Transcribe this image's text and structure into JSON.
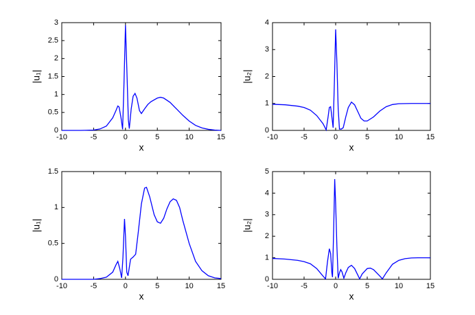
{
  "chart_data": [
    {
      "type": "line",
      "xlabel": "x",
      "ylabel": "|u₁|",
      "xlim": [
        -10,
        15
      ],
      "xticks": [
        -10,
        -5,
        0,
        5,
        10,
        15
      ],
      "ylim": [
        0,
        3
      ],
      "yticks": [
        0,
        0.5,
        1,
        1.5,
        2,
        2.5,
        3
      ],
      "series": [
        {
          "color": "#0000ff",
          "x": [
            -10,
            -7,
            -5,
            -4,
            -3,
            -2,
            -1.5,
            -1.2,
            -1,
            -0.7,
            -0.45,
            -0.25,
            0,
            0.25,
            0.45,
            0.6,
            0.9,
            1.2,
            1.5,
            1.8,
            2.2,
            2.5,
            3,
            3.5,
            4,
            5,
            5.5,
            6,
            7,
            8,
            9,
            10,
            11,
            12,
            13,
            14,
            15
          ],
          "values": [
            0,
            0,
            0.01,
            0.04,
            0.12,
            0.35,
            0.55,
            0.68,
            0.65,
            0.35,
            0.03,
            1.2,
            2.93,
            1.5,
            0.3,
            0.05,
            0.6,
            0.95,
            1.03,
            0.9,
            0.55,
            0.47,
            0.6,
            0.72,
            0.8,
            0.9,
            0.92,
            0.9,
            0.78,
            0.6,
            0.42,
            0.26,
            0.14,
            0.07,
            0.03,
            0.01,
            0
          ]
        }
      ]
    },
    {
      "type": "line",
      "xlabel": "x",
      "ylabel": "|u₂|",
      "xlim": [
        -10,
        15
      ],
      "xticks": [
        -10,
        -5,
        0,
        5,
        10,
        15
      ],
      "ylim": [
        0,
        4
      ],
      "yticks": [
        0,
        1,
        2,
        3,
        4
      ],
      "series": [
        {
          "color": "#0000ff",
          "x": [
            -10,
            -8,
            -6,
            -5,
            -4,
            -3,
            -2,
            -1.5,
            -1.2,
            -1,
            -0.8,
            -0.6,
            -0.4,
            -0.2,
            0,
            0.2,
            0.4,
            0.6,
            0.9,
            1.2,
            1.6,
            2,
            2.5,
            3,
            3.5,
            4,
            4.5,
            5,
            6,
            7,
            8,
            9,
            10,
            12,
            15
          ],
          "values": [
            0.97,
            0.95,
            0.9,
            0.85,
            0.75,
            0.55,
            0.25,
            0.02,
            0.5,
            0.85,
            0.88,
            0.5,
            0.1,
            1.8,
            3.75,
            2.5,
            0.8,
            0.05,
            0.05,
            0.1,
            0.5,
            0.85,
            1.05,
            0.95,
            0.7,
            0.45,
            0.35,
            0.35,
            0.5,
            0.72,
            0.88,
            0.96,
            0.99,
            1,
            1
          ]
        }
      ]
    },
    {
      "type": "line",
      "xlabel": "x",
      "ylabel": "|u₁|",
      "xlim": [
        -10,
        15
      ],
      "xticks": [
        -10,
        -5,
        0,
        5,
        10,
        15
      ],
      "ylim": [
        0,
        1.5
      ],
      "yticks": [
        0,
        0.5,
        1,
        1.5
      ],
      "series": [
        {
          "color": "#0000ff",
          "x": [
            -10,
            -5,
            -4,
            -3,
            -2,
            -1.5,
            -1.2,
            -0.9,
            -0.6,
            -0.4,
            -0.15,
            0,
            0.2,
            0.4,
            0.8,
            1.2,
            1.6,
            2,
            2.5,
            3,
            3.3,
            3.8,
            4.5,
            5,
            5.5,
            6,
            6.5,
            7,
            7.5,
            8,
            8.5,
            9,
            10,
            11,
            12,
            13,
            14,
            15
          ],
          "values": [
            0,
            0,
            0.01,
            0.03,
            0.1,
            0.2,
            0.25,
            0.15,
            0.02,
            0.3,
            0.84,
            0.6,
            0.1,
            0.05,
            0.28,
            0.31,
            0.35,
            0.65,
            1.05,
            1.27,
            1.28,
            1.15,
            0.9,
            0.8,
            0.78,
            0.85,
            0.98,
            1.08,
            1.12,
            1.1,
            1,
            0.82,
            0.5,
            0.25,
            0.12,
            0.05,
            0.02,
            0.01
          ]
        }
      ]
    },
    {
      "type": "line",
      "xlabel": "x",
      "ylabel": "|u₂|",
      "xlim": [
        -10,
        15
      ],
      "xticks": [
        -10,
        -5,
        0,
        5,
        10,
        15
      ],
      "ylim": [
        0,
        5
      ],
      "yticks": [
        0,
        1,
        2,
        3,
        4,
        5
      ],
      "series": [
        {
          "color": "#0000ff",
          "x": [
            -10,
            -8,
            -6,
            -5,
            -4,
            -3,
            -2,
            -1.6,
            -1.3,
            -1,
            -0.8,
            -0.6,
            -0.5,
            -0.3,
            -0.15,
            0,
            0.2,
            0.4,
            0.6,
            0.8,
            1,
            1.3,
            1.6,
            2,
            2.5,
            3,
            3.5,
            3.8,
            4.2,
            5,
            5.5,
            6,
            7,
            7.4,
            8,
            9,
            10,
            11,
            12,
            13,
            15
          ],
          "values": [
            0.97,
            0.94,
            0.88,
            0.82,
            0.72,
            0.5,
            0.15,
            0.02,
            0.8,
            1.42,
            1.2,
            0.3,
            0.1,
            2.5,
            4.65,
            3.5,
            1.5,
            0.05,
            0.3,
            0.45,
            0.35,
            0.05,
            0.3,
            0.55,
            0.65,
            0.5,
            0.2,
            0.02,
            0.25,
            0.5,
            0.52,
            0.45,
            0.15,
            0.02,
            0.3,
            0.7,
            0.88,
            0.96,
            0.99,
            1,
            1
          ]
        }
      ]
    }
  ]
}
